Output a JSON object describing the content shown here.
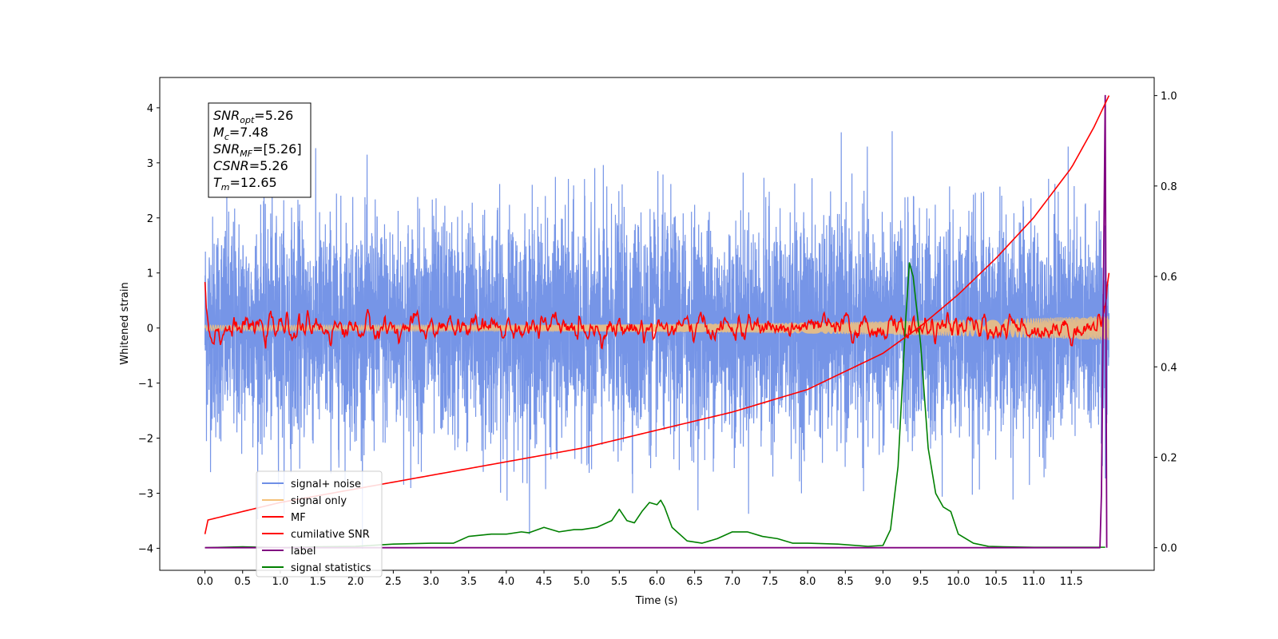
{
  "chart_data": {
    "type": "line",
    "xlabel": "Time (s)",
    "ylabel": "Whitened strain",
    "xlim": [
      -0.6,
      12.6
    ],
    "ylim_left": [
      -4.4,
      4.55
    ],
    "ylim_right": [
      -0.05,
      1.04
    ],
    "xticks": [
      "0.0",
      "0.5",
      "1.0",
      "1.5",
      "2.0",
      "2.5",
      "3.0",
      "3.5",
      "4.0",
      "4.5",
      "5.0",
      "5.5",
      "6.0",
      "6.5",
      "7.0",
      "7.5",
      "8.0",
      "8.5",
      "9.0",
      "9.5",
      "10.0",
      "10.5",
      "11.0",
      "11.5"
    ],
    "yticks_left": [
      "−4",
      "−3",
      "−2",
      "−1",
      "0",
      "1",
      "2",
      "3",
      "4"
    ],
    "yticks_right": [
      "0.0",
      "0.2",
      "0.4",
      "0.6",
      "0.8",
      "1.0"
    ],
    "legend": {
      "location": "lower-left",
      "entries": [
        {
          "label": "signal+ noise",
          "color": "#6f8fe6"
        },
        {
          "label": "signal only",
          "color": "#f5c27a"
        },
        {
          "label": "MF",
          "color": "#ff0000"
        },
        {
          "label": "cumilative SNR",
          "color": "#ff0000"
        },
        {
          "label": "label",
          "color": "#800080"
        },
        {
          "label": "signal statistics",
          "color": "#008000"
        }
      ]
    },
    "annotation": {
      "lines": [
        {
          "sym": "SNR",
          "sub": "opt",
          "value": "=5.26"
        },
        {
          "sym": "M",
          "sub": "c",
          "value": "=7.48"
        },
        {
          "sym": "SNR",
          "sub": "MF",
          "value": "=[5.26]"
        },
        {
          "sym": "CSNR",
          "sub": "",
          "value": "=5.26"
        },
        {
          "sym": "T",
          "sub": "m",
          "value": "=12.65"
        }
      ]
    },
    "series": [
      {
        "name": "signal+ noise",
        "axis": "left",
        "color": "#6f8fe6",
        "kind": "noise",
        "x_range": [
          0,
          12
        ],
        "std": 1.05,
        "peak": 4.1
      },
      {
        "name": "signal only",
        "axis": "left",
        "color": "#f5c27a",
        "kind": "chirp",
        "x_range": [
          0,
          12
        ],
        "amp_start": 0.05,
        "amp_end": 0.22
      },
      {
        "name": "MF",
        "axis": "left",
        "color": "#ff0000",
        "kind": "noise",
        "x_range": [
          0,
          12
        ],
        "x": [
          0.0,
          0.02,
          0.05,
          0.1,
          0.5,
          1.0,
          2.0,
          3.0,
          4.0,
          5.0,
          6.0,
          7.0,
          8.0,
          9.0,
          9.4,
          10.0,
          11.0,
          11.9,
          12.0
        ],
        "y": [
          0.9,
          0.4,
          0.0,
          -0.05,
          0.0,
          0.0,
          0.0,
          0.0,
          0.0,
          0.0,
          0.0,
          0.0,
          0.0,
          0.0,
          0.0,
          0.0,
          0.0,
          0.0,
          1.0
        ]
      },
      {
        "name": "cumilative SNR",
        "axis": "right",
        "x": [
          0.0,
          0.01,
          0.5,
          1.0,
          2.0,
          3.0,
          4.0,
          5.0,
          6.0,
          7.0,
          8.0,
          8.5,
          9.0,
          9.5,
          10.0,
          10.5,
          11.0,
          11.5,
          11.8,
          12.0
        ],
        "y": [
          0.03,
          0.06,
          0.08,
          0.1,
          0.13,
          0.16,
          0.19,
          0.22,
          0.26,
          0.3,
          0.35,
          0.39,
          0.43,
          0.49,
          0.56,
          0.64,
          0.73,
          0.84,
          0.93,
          1.0
        ]
      },
      {
        "name": "label",
        "axis": "right",
        "x": [
          0.0,
          11.88,
          11.9,
          11.95,
          11.97
        ],
        "y": [
          0.0,
          0.0,
          0.12,
          1.0,
          0.0
        ]
      },
      {
        "name": "signal statistics",
        "axis": "right",
        "x": [
          0.0,
          0.5,
          1.0,
          1.5,
          2.0,
          2.5,
          3.0,
          3.3,
          3.5,
          3.8,
          4.0,
          4.2,
          4.3,
          4.5,
          4.7,
          4.9,
          5.0,
          5.2,
          5.4,
          5.5,
          5.6,
          5.7,
          5.8,
          5.9,
          6.0,
          6.05,
          6.1,
          6.2,
          6.4,
          6.6,
          6.8,
          7.0,
          7.2,
          7.4,
          7.6,
          7.8,
          8.0,
          8.4,
          8.8,
          9.0,
          9.1,
          9.2,
          9.3,
          9.35,
          9.4,
          9.5,
          9.6,
          9.7,
          9.8,
          9.9,
          10.0,
          10.2,
          10.4,
          10.6,
          11.0,
          11.5,
          11.95
        ],
        "y": [
          0.0,
          0.002,
          0.0,
          0.002,
          0.003,
          0.008,
          0.01,
          0.01,
          0.025,
          0.03,
          0.03,
          0.035,
          0.033,
          0.045,
          0.035,
          0.04,
          0.04,
          0.045,
          0.06,
          0.085,
          0.06,
          0.055,
          0.08,
          0.1,
          0.095,
          0.105,
          0.09,
          0.045,
          0.015,
          0.01,
          0.02,
          0.035,
          0.035,
          0.025,
          0.02,
          0.01,
          0.01,
          0.008,
          0.003,
          0.005,
          0.04,
          0.18,
          0.5,
          0.63,
          0.6,
          0.45,
          0.22,
          0.12,
          0.09,
          0.08,
          0.03,
          0.01,
          0.003,
          0.002,
          0.001,
          0.001,
          0.001
        ]
      }
    ]
  }
}
